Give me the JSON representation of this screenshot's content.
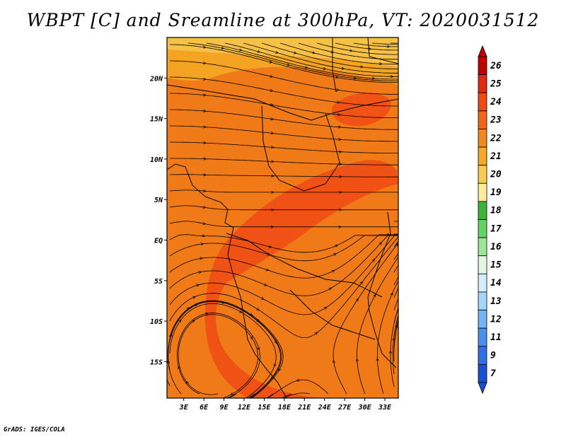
{
  "title": "WBPT [C] and Sreamline at 300hPa, VT: 2020031512",
  "credit": "GrADS: IGES/COLA",
  "map": {
    "lat_labels": [
      "20N",
      "15N",
      "10N",
      "5N",
      "EQ",
      "5S",
      "10S",
      "15S"
    ],
    "lat_values": [
      20,
      15,
      10,
      5,
      0,
      -5,
      -10,
      -15
    ],
    "lon_labels": [
      "3E",
      "6E",
      "9E",
      "12E",
      "15E",
      "18E",
      "21E",
      "24E",
      "27E",
      "30E",
      "33E"
    ],
    "lon_values": [
      3,
      6,
      9,
      12,
      15,
      18,
      21,
      24,
      27,
      30,
      33
    ],
    "lon_range": [
      0.5,
      35
    ],
    "lat_range": [
      -19.5,
      25
    ],
    "background_color": "#f07a18",
    "streamline_color": "#000000",
    "coastline_color": "#000000"
  },
  "colorbar": {
    "labels": [
      "26",
      "25",
      "24",
      "23",
      "22",
      "21",
      "20",
      "19",
      "18",
      "17",
      "16",
      "15",
      "14",
      "13",
      "12",
      "11",
      "9",
      "7"
    ],
    "colors": [
      "#c00000",
      "#e02a10",
      "#f04a14",
      "#f0661c",
      "#f08a20",
      "#f4aa24",
      "#f8cc50",
      "#fcec9c",
      "#3cb43c",
      "#64d264",
      "#9ce69c",
      "#e2f6e2",
      "#d4ecfc",
      "#a4d4fc",
      "#74b4f4",
      "#4c90ec",
      "#3070e0",
      "#1c50d0"
    ]
  },
  "shading_regions": [
    {
      "name": "yellow-north",
      "color": "#f8cc50"
    },
    {
      "name": "light-orange",
      "color": "#f4aa24"
    },
    {
      "name": "red-band",
      "color": "#f04a14"
    }
  ]
}
